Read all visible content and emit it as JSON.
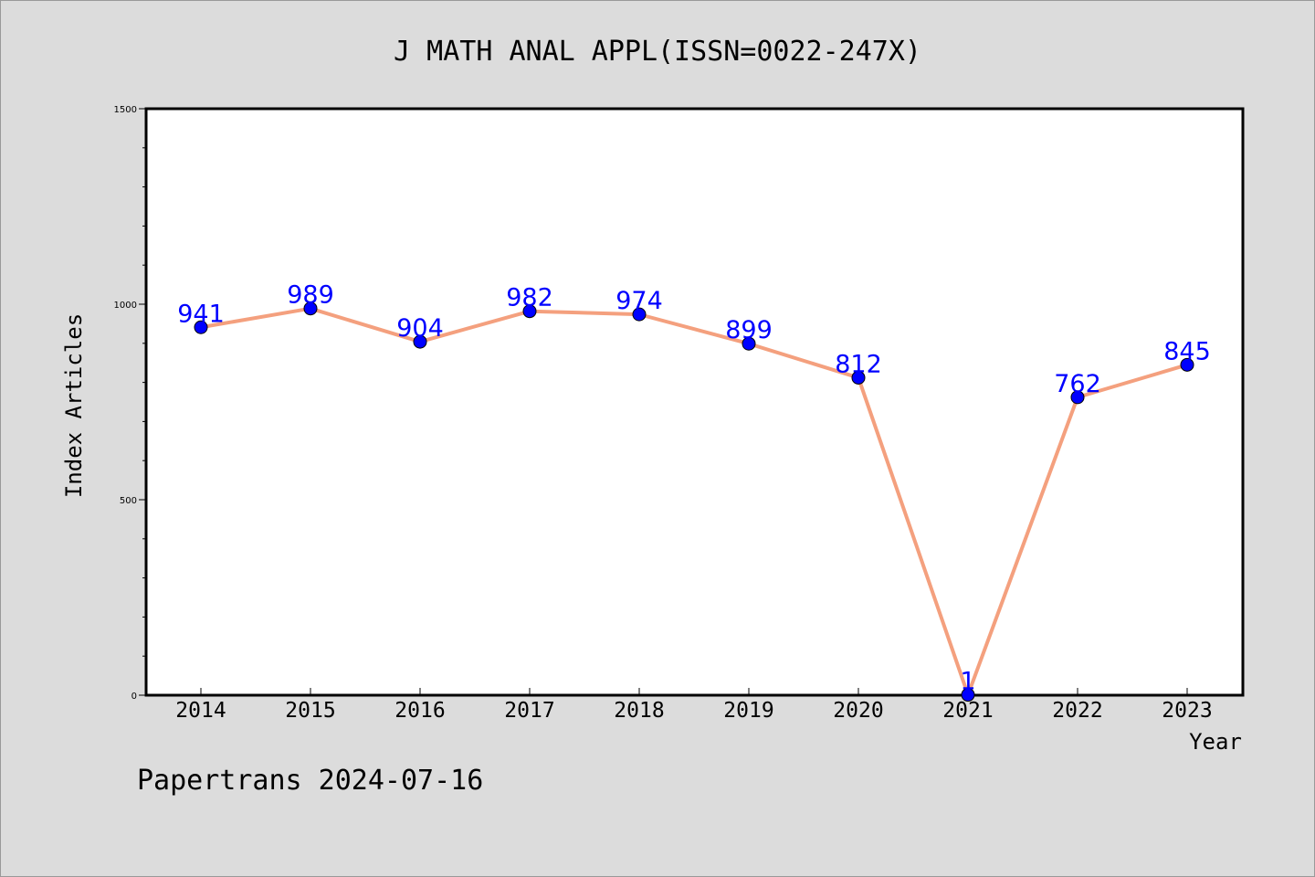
{
  "chart_data": {
    "type": "line",
    "title": "J MATH ANAL APPL(ISSN=0022-247X)",
    "xlabel": "Year",
    "ylabel": "Index Articles",
    "categories": [
      "2014",
      "2015",
      "2016",
      "2017",
      "2018",
      "2019",
      "2020",
      "2021",
      "2022",
      "2023"
    ],
    "series": [
      {
        "values": [
          941,
          989,
          904,
          982,
          974,
          899,
          812,
          1,
          762,
          845
        ]
      }
    ],
    "ylim": [
      0,
      1500
    ],
    "yticks": [
      "0",
      "500",
      "1000",
      "1500"
    ],
    "grid": false,
    "colors": {
      "line": "#f4a07e",
      "marker": "#0000ff",
      "marker_edge": "#000000",
      "data_label": "#0000ff",
      "background": "#dcdcdc",
      "plot_background": "#ffffff"
    }
  },
  "footer": {
    "text": "Papertrans 2024-07-16"
  }
}
